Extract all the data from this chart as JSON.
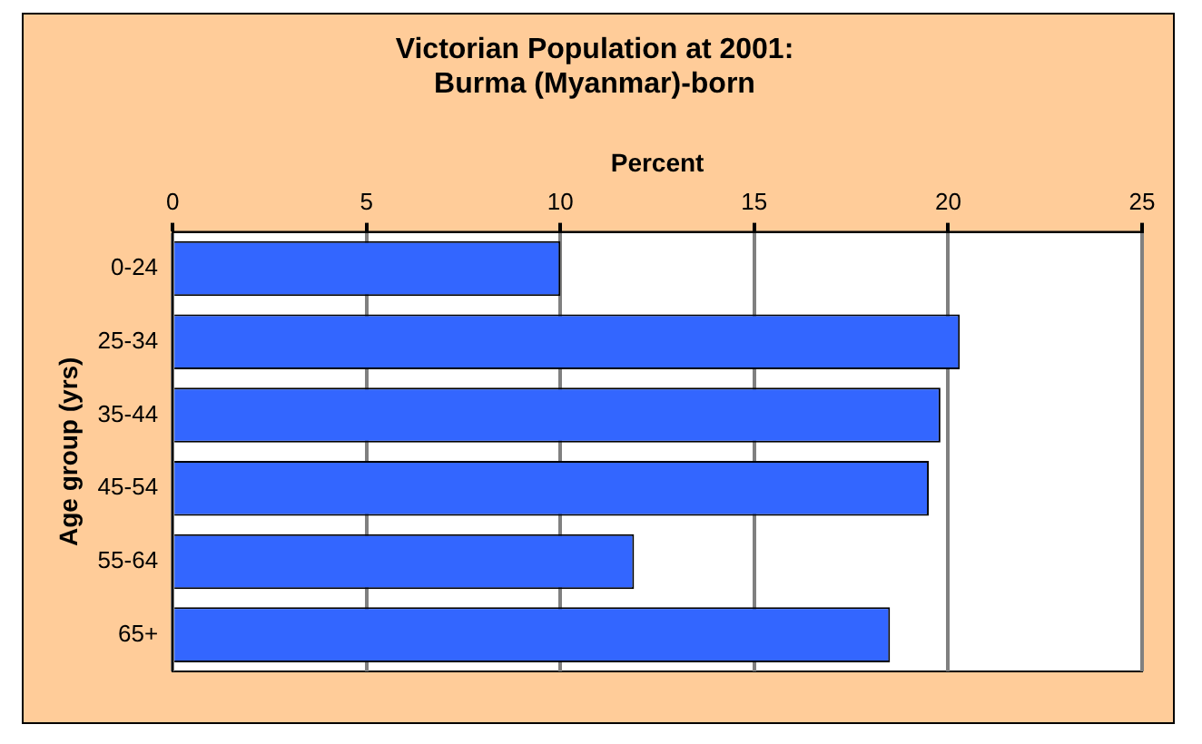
{
  "chart_data": {
    "type": "bar",
    "orientation": "horizontal",
    "title": "Victorian Population at 2001:\nBurma (Myanmar)-born",
    "xlabel": "Percent",
    "ylabel": "Age group (yrs)",
    "categories": [
      "0-24",
      "25-34",
      "35-44",
      "45-54",
      "55-64",
      "65+"
    ],
    "values": [
      10.0,
      20.3,
      19.8,
      19.5,
      11.9,
      18.5
    ],
    "color": "#3366ff",
    "xlim": [
      0,
      25
    ],
    "xticks": [
      0,
      5,
      10,
      15,
      20,
      25
    ],
    "grid": "x",
    "legend": false
  }
}
